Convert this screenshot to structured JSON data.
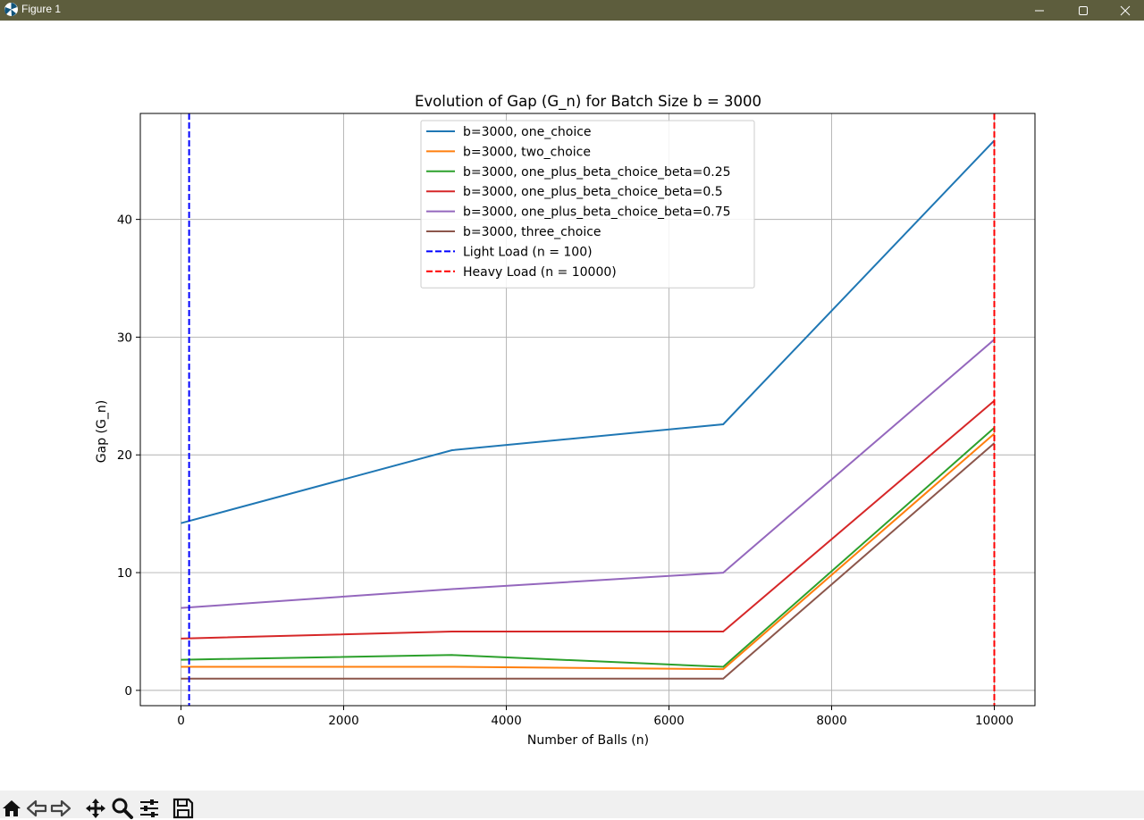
{
  "window": {
    "title": "Figure 1"
  },
  "toolbar": {
    "items": [
      "home-icon",
      "back-icon",
      "forward-icon",
      "pan-icon",
      "zoom-icon",
      "configure-icon",
      "save-icon"
    ]
  },
  "chart_data": {
    "type": "line",
    "title": "Evolution of Gap (G_n) for Batch Size b = 3000",
    "xlabel": "Number of Balls (n)",
    "ylabel": "Gap (G_n)",
    "xlim": [
      -500,
      10500
    ],
    "ylim": [
      -1.3,
      49
    ],
    "xticks": [
      0,
      2000,
      4000,
      6000,
      8000,
      10000
    ],
    "xtick_labels": [
      "0",
      "2000",
      "4000",
      "6000",
      "8000",
      "10000"
    ],
    "yticks": [
      0,
      10,
      20,
      30,
      40
    ],
    "ytick_labels": [
      "0",
      "10",
      "20",
      "30",
      "40"
    ],
    "grid": true,
    "legend_position": "top-center",
    "x": [
      0,
      3333,
      6667,
      10000
    ],
    "series": [
      {
        "name": "b=3000, one_choice",
        "color": "#1f77b4",
        "values": [
          14.2,
          20.4,
          22.6,
          46.7
        ]
      },
      {
        "name": "b=3000, two_choice",
        "color": "#ff7f0e",
        "values": [
          2.0,
          2.0,
          1.8,
          21.8
        ]
      },
      {
        "name": "b=3000, one_plus_beta_choice_beta=0.25",
        "color": "#2ca02c",
        "values": [
          2.6,
          3.0,
          2.0,
          22.3
        ]
      },
      {
        "name": "b=3000, one_plus_beta_choice_beta=0.5",
        "color": "#d62728",
        "values": [
          4.4,
          5.0,
          5.0,
          24.6
        ]
      },
      {
        "name": "b=3000, one_plus_beta_choice_beta=0.75",
        "color": "#9467bd",
        "values": [
          7.0,
          8.6,
          10.0,
          29.8
        ]
      },
      {
        "name": "b=3000, three_choice",
        "color": "#8c564b",
        "values": [
          1.0,
          1.0,
          1.0,
          21.0
        ]
      }
    ],
    "vlines": [
      {
        "name": "Light Load (n = 100)",
        "x": 100,
        "color": "#0000ff",
        "style": "dashed"
      },
      {
        "name": "Heavy Load (n = 10000)",
        "x": 10000,
        "color": "#ff0000",
        "style": "dashed"
      }
    ]
  }
}
